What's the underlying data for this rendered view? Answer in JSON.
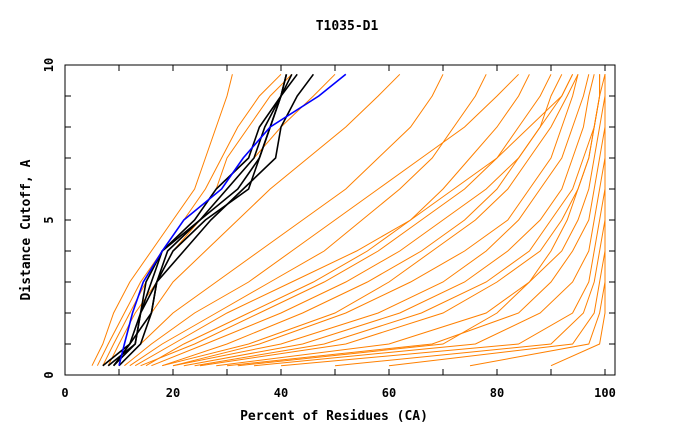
{
  "chart_data": {
    "type": "line",
    "title": "T1035-D1",
    "xlabel": "Percent of Residues (CA)",
    "ylabel": "Distance Cutoff, A",
    "xlim": [
      0,
      100
    ],
    "ylim": [
      0,
      10
    ],
    "x_ticks": [
      "0",
      "20",
      "40",
      "60",
      "80",
      "100"
    ],
    "y_ticks": [
      "0",
      "5",
      "10"
    ],
    "grid": false,
    "colors": {
      "models": "#ff8000",
      "highlight": "#000000",
      "reference": "#0000ff"
    },
    "y_levels": [
      0.3,
      1,
      2,
      3,
      4,
      5,
      6,
      7,
      8,
      9,
      9.7
    ],
    "series_orange": [
      [
        5,
        7,
        9,
        12,
        16,
        20,
        24,
        26,
        28,
        30,
        31
      ],
      [
        6,
        8,
        11,
        14,
        18,
        22,
        26,
        29,
        32,
        36,
        40
      ],
      [
        7,
        9,
        12,
        15,
        18,
        24,
        28,
        30,
        34,
        38,
        42
      ],
      [
        8,
        10,
        13,
        17,
        20,
        25,
        30,
        35,
        40,
        46,
        50
      ],
      [
        9,
        12,
        16,
        20,
        26,
        32,
        38,
        45,
        52,
        58,
        62
      ],
      [
        10,
        14,
        20,
        28,
        36,
        44,
        52,
        58,
        64,
        68,
        70
      ],
      [
        11,
        16,
        24,
        34,
        42,
        50,
        58,
        66,
        74,
        80,
        84
      ],
      [
        12,
        18,
        28,
        38,
        48,
        55,
        62,
        68,
        72,
        76,
        78
      ],
      [
        13,
        20,
        30,
        42,
        54,
        64,
        72,
        80,
        86,
        92,
        94
      ],
      [
        14,
        24,
        36,
        48,
        58,
        66,
        74,
        80,
        84,
        88,
        90
      ],
      [
        15,
        22,
        34,
        46,
        56,
        64,
        70,
        75,
        80,
        84,
        86
      ],
      [
        16,
        26,
        40,
        52,
        62,
        70,
        78,
        84,
        88,
        92,
        94
      ],
      [
        18,
        30,
        44,
        56,
        66,
        74,
        80,
        84,
        88,
        90,
        92
      ],
      [
        18,
        34,
        50,
        60,
        68,
        76,
        82,
        86,
        90,
        93,
        95
      ],
      [
        20,
        36,
        52,
        64,
        74,
        82,
        86,
        90,
        92,
        94,
        95
      ],
      [
        20,
        40,
        58,
        70,
        78,
        84,
        88,
        92,
        94,
        96,
        97
      ],
      [
        22,
        44,
        62,
        74,
        82,
        88,
        92,
        94,
        96,
        97,
        98
      ],
      [
        24,
        48,
        66,
        78,
        86,
        90,
        94,
        96,
        98,
        99,
        99
      ],
      [
        25,
        52,
        70,
        80,
        88,
        92,
        95,
        97,
        98,
        99,
        99
      ],
      [
        28,
        60,
        78,
        86,
        92,
        95,
        97,
        98,
        99,
        100,
        100
      ],
      [
        30,
        68,
        84,
        90,
        94,
        97,
        98,
        99,
        100,
        100,
        100
      ],
      [
        32,
        70,
        80,
        86,
        90,
        93,
        95,
        97,
        98,
        99,
        100
      ],
      [
        35,
        76,
        88,
        94,
        97,
        98,
        99,
        100,
        100,
        100,
        100
      ],
      [
        40,
        84,
        94,
        97,
        98,
        99,
        100,
        100,
        100,
        100,
        100
      ],
      [
        50,
        90,
        96,
        98,
        99,
        100,
        100,
        100,
        100,
        100,
        100
      ],
      [
        60,
        94,
        98,
        99,
        100,
        100,
        100,
        100,
        100,
        100,
        100
      ],
      [
        75,
        97,
        99,
        100,
        100,
        100,
        100,
        100,
        100,
        100,
        100
      ],
      [
        90,
        99,
        100,
        100,
        100,
        100,
        100,
        100,
        100,
        100,
        100
      ]
    ],
    "series_black": [
      [
        7,
        12,
        14,
        16,
        18,
        24,
        28,
        34,
        36,
        40,
        43
      ],
      [
        9,
        12,
        16,
        17,
        20,
        26,
        34,
        36,
        38,
        40,
        42
      ],
      [
        8,
        13,
        14,
        17,
        19,
        25,
        30,
        35,
        37,
        40,
        41
      ],
      [
        10,
        14,
        16,
        17,
        22,
        27,
        33,
        39,
        40,
        43,
        46
      ],
      [
        9,
        13,
        14,
        15,
        18,
        25,
        32,
        36,
        38,
        40,
        41
      ]
    ],
    "series_blue": [
      10,
      11,
      12.5,
      14.5,
      18,
      22,
      29,
      33,
      38,
      47,
      52
    ]
  }
}
